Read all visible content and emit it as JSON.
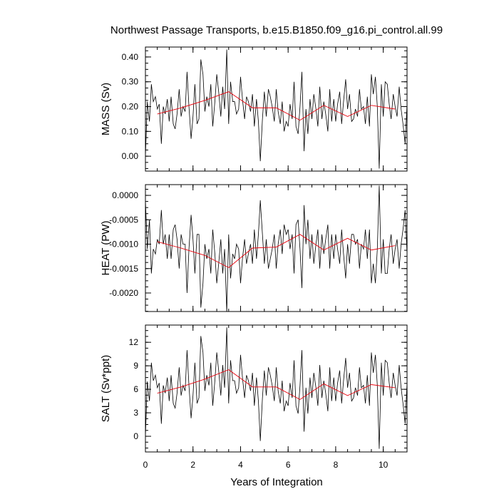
{
  "chart_data": [
    {
      "type": "line",
      "title": "Northwest Passage Transports, b.e15.B1850.f09_g16.pi_control.all.99",
      "ylabel": "MASS (Sv)",
      "xlabel": "",
      "xlim": [
        0,
        11
      ],
      "ylim": [
        -0.06,
        0.44
      ],
      "yticks": [
        0.0,
        0.1,
        0.2,
        0.3,
        0.4
      ],
      "ytick_labels": [
        "0.00",
        "0.10",
        "0.20",
        "0.30",
        "0.40"
      ],
      "yminor_step": 0.025,
      "xticks": [
        0,
        2,
        4,
        6,
        8,
        10
      ],
      "xtick_labels": [],
      "xminor_step": 0.5,
      "series": [
        {
          "color": "#000000",
          "x": [
            0.0,
            0.08,
            0.17,
            0.25,
            0.33,
            0.42,
            0.5,
            0.58,
            0.67,
            0.75,
            0.83,
            0.92,
            1.0,
            1.08,
            1.17,
            1.25,
            1.33,
            1.42,
            1.5,
            1.58,
            1.67,
            1.75,
            1.83,
            1.92,
            2.0,
            2.08,
            2.17,
            2.25,
            2.33,
            2.42,
            2.5,
            2.58,
            2.67,
            2.75,
            2.83,
            2.92,
            3.0,
            3.08,
            3.17,
            3.25,
            3.33,
            3.42,
            3.5,
            3.58,
            3.67,
            3.75,
            3.83,
            3.92,
            4.0,
            4.08,
            4.17,
            4.25,
            4.33,
            4.42,
            4.5,
            4.58,
            4.67,
            4.75,
            4.83,
            4.92,
            5.0,
            5.08,
            5.17,
            5.25,
            5.33,
            5.42,
            5.5,
            5.58,
            5.67,
            5.75,
            5.83,
            5.92,
            6.0,
            6.08,
            6.17,
            6.25,
            6.33,
            6.42,
            6.5,
            6.58,
            6.67,
            6.75,
            6.83,
            6.92,
            7.0,
            7.08,
            7.17,
            7.25,
            7.33,
            7.42,
            7.5,
            7.58,
            7.67,
            7.75,
            7.83,
            7.92,
            8.0,
            8.08,
            8.17,
            8.25,
            8.33,
            8.42,
            8.5,
            8.58,
            8.67,
            8.75,
            8.83,
            8.92,
            9.0,
            9.08,
            9.17,
            9.25,
            9.33,
            9.42,
            9.5,
            9.58,
            9.67,
            9.75,
            9.83,
            9.92,
            10.0,
            10.08,
            10.17,
            10.25,
            10.33,
            10.42,
            10.5,
            10.58,
            10.67,
            10.75,
            10.83,
            10.92,
            11.0
          ],
          "values": [
            0.0,
            0.22,
            0.14,
            0.29,
            0.22,
            0.24,
            0.19,
            0.21,
            0.05,
            0.2,
            0.17,
            0.23,
            0.14,
            0.24,
            0.13,
            0.11,
            0.17,
            0.27,
            0.16,
            0.2,
            0.18,
            0.34,
            0.2,
            0.07,
            0.16,
            0.29,
            0.13,
            0.15,
            0.39,
            0.33,
            0.18,
            0.24,
            0.2,
            0.29,
            0.12,
            0.22,
            0.33,
            0.26,
            0.16,
            0.28,
            0.19,
            0.43,
            0.13,
            0.3,
            0.22,
            0.22,
            0.17,
            0.19,
            0.32,
            0.23,
            0.15,
            0.24,
            0.22,
            0.18,
            0.25,
            0.12,
            0.23,
            0.14,
            -0.02,
            0.15,
            0.26,
            0.16,
            0.27,
            0.24,
            0.2,
            0.14,
            0.27,
            0.18,
            0.13,
            0.22,
            0.1,
            0.14,
            0.12,
            0.21,
            0.15,
            0.3,
            0.12,
            0.09,
            0.2,
            0.34,
            0.02,
            0.19,
            0.09,
            0.23,
            0.15,
            0.25,
            0.19,
            0.12,
            0.28,
            0.15,
            0.22,
            0.17,
            0.1,
            0.27,
            0.14,
            0.23,
            0.14,
            0.21,
            0.26,
            0.13,
            0.22,
            0.31,
            0.19,
            0.25,
            0.14,
            0.15,
            0.19,
            0.16,
            0.27,
            0.19,
            0.2,
            0.13,
            0.24,
            0.12,
            0.33,
            0.25,
            0.32,
            0.2,
            -0.05,
            0.29,
            0.16,
            0.3,
            0.29,
            0.21,
            0.15,
            0.25,
            0.2,
            0.16,
            0.28,
            0.19,
            0.13,
            0.05,
            0.21
          ]
        },
        {
          "color": "#e8000b",
          "x": [
            0.5,
            1.5,
            2.5,
            3.5,
            4.5,
            5.5,
            6.5,
            7.5,
            8.5,
            9.5,
            10.5
          ],
          "values": [
            0.17,
            0.195,
            0.225,
            0.26,
            0.195,
            0.195,
            0.145,
            0.205,
            0.16,
            0.205,
            0.19
          ]
        }
      ]
    },
    {
      "type": "line",
      "title": "",
      "ylabel": "HEAT (PW)",
      "xlabel": "",
      "xlim": [
        0,
        11
      ],
      "ylim": [
        -0.00238,
        0.00022
      ],
      "yticks": [
        -0.002,
        -0.0015,
        -0.001,
        -0.0005,
        0.0
      ],
      "ytick_labels": [
        "-0.0020",
        "-0.0015",
        "-0.0010",
        "-0.0005",
        "0.0000"
      ],
      "yminor_step": 0.000125,
      "xticks": [
        0,
        2,
        4,
        6,
        8,
        10
      ],
      "xtick_labels": [],
      "xminor_step": 0.5,
      "series": [
        {
          "color": "#000000",
          "x": [
            0.0,
            0.08,
            0.17,
            0.25,
            0.33,
            0.42,
            0.5,
            0.58,
            0.67,
            0.75,
            0.83,
            0.92,
            1.0,
            1.08,
            1.17,
            1.25,
            1.33,
            1.42,
            1.5,
            1.58,
            1.67,
            1.75,
            1.83,
            1.92,
            2.0,
            2.08,
            2.17,
            2.25,
            2.33,
            2.42,
            2.5,
            2.58,
            2.67,
            2.75,
            2.83,
            2.92,
            3.0,
            3.08,
            3.17,
            3.25,
            3.33,
            3.42,
            3.5,
            3.58,
            3.67,
            3.75,
            3.83,
            3.92,
            4.0,
            4.08,
            4.17,
            4.25,
            4.33,
            4.42,
            4.5,
            4.58,
            4.67,
            4.75,
            4.83,
            4.92,
            5.0,
            5.08,
            5.17,
            5.25,
            5.33,
            5.42,
            5.5,
            5.58,
            5.67,
            5.75,
            5.83,
            5.92,
            6.0,
            6.08,
            6.17,
            6.25,
            6.33,
            6.42,
            6.5,
            6.58,
            6.67,
            6.75,
            6.83,
            6.92,
            7.0,
            7.08,
            7.17,
            7.25,
            7.33,
            7.42,
            7.5,
            7.58,
            7.67,
            7.75,
            7.83,
            7.92,
            8.0,
            8.08,
            8.17,
            8.25,
            8.33,
            8.42,
            8.5,
            8.58,
            8.67,
            8.75,
            8.83,
            8.92,
            9.0,
            9.08,
            9.17,
            9.25,
            9.33,
            9.42,
            9.5,
            9.58,
            9.67,
            9.75,
            9.83,
            9.92,
            10.0,
            10.08,
            10.17,
            10.25,
            10.33,
            10.42,
            10.5,
            10.58,
            10.67,
            10.75,
            10.83,
            10.92,
            11.0
          ],
          "values": [
            -0.0001,
            -0.0011,
            -0.0005,
            -0.0016,
            -0.0011,
            -0.0012,
            -0.0009,
            -0.001,
            -0.0003,
            -0.001,
            -0.0008,
            -0.0013,
            -0.0008,
            -0.0013,
            -0.0007,
            -0.0006,
            -0.0009,
            -0.0015,
            -0.0008,
            -0.001,
            -0.001,
            -0.002,
            -0.0011,
            -0.0004,
            -0.0009,
            -0.0016,
            -0.0008,
            -0.0008,
            -0.0023,
            -0.0018,
            -0.001,
            -0.0013,
            -0.0011,
            -0.0016,
            -0.0007,
            -0.0012,
            -0.0018,
            -0.0014,
            -0.0009,
            -0.0016,
            -0.0011,
            -0.0024,
            -0.0008,
            -0.0017,
            -0.0012,
            -0.0013,
            -0.001,
            -0.0011,
            -0.0018,
            -0.0013,
            -0.0009,
            -0.0014,
            -0.0012,
            -0.001,
            -0.0014,
            -0.0007,
            -0.0013,
            -0.0008,
            -0.0001,
            -0.0008,
            -0.0014,
            -0.0009,
            -0.0015,
            -0.0013,
            -0.0011,
            -0.0008,
            -0.0015,
            -0.001,
            -0.0007,
            -0.0012,
            -0.0006,
            -0.0008,
            -0.0007,
            -0.0011,
            -0.0008,
            -0.0016,
            -0.0006,
            -0.0005,
            -0.0011,
            -0.0019,
            -0.0002,
            -0.001,
            -0.0005,
            -0.0013,
            -0.0008,
            -0.0014,
            -0.001,
            -0.0007,
            -0.0015,
            -0.0008,
            -0.0012,
            -0.0009,
            -0.0006,
            -0.0015,
            -0.0008,
            -0.0013,
            -0.0008,
            -0.0011,
            -0.0014,
            -0.0007,
            -0.0012,
            -0.0017,
            -0.001,
            -0.0014,
            -0.0008,
            -0.0008,
            -0.001,
            -0.0009,
            -0.0015,
            -0.001,
            -0.0011,
            -0.0007,
            -0.0013,
            -0.0007,
            -0.0018,
            -0.0014,
            -0.0018,
            -0.0011,
            0.0002,
            -0.0016,
            -0.0009,
            -0.0016,
            -0.0016,
            -0.0011,
            -0.0008,
            -0.0014,
            -0.0011,
            -0.0009,
            -0.0015,
            -0.001,
            -0.0007,
            -0.0003,
            -0.0012
          ]
        },
        {
          "color": "#e8000b",
          "x": [
            0.5,
            1.5,
            2.5,
            3.5,
            4.5,
            5.5,
            6.5,
            7.5,
            8.5,
            9.5,
            10.5
          ],
          "values": [
            -0.00095,
            -0.00108,
            -0.00123,
            -0.00148,
            -0.00108,
            -0.00106,
            -0.0008,
            -0.00112,
            -0.00088,
            -0.00112,
            -0.00103
          ]
        }
      ]
    },
    {
      "type": "line",
      "title": "",
      "ylabel": "SALT (Sv*ppt)",
      "xlabel": "Years of Integration",
      "xlim": [
        0,
        11
      ],
      "ylim": [
        -2.0,
        14.2
      ],
      "yticks": [
        0,
        3,
        6,
        9,
        12
      ],
      "ytick_labels": [
        "0",
        "3",
        "6",
        "9",
        "12"
      ],
      "yminor_step": 0.75,
      "xticks": [
        0,
        2,
        4,
        6,
        8,
        10
      ],
      "xtick_labels": [
        "0",
        "2",
        "4",
        "6",
        "8",
        "10"
      ],
      "xminor_step": 0.5,
      "series": [
        {
          "color": "#000000",
          "x": [
            0.0,
            0.08,
            0.17,
            0.25,
            0.33,
            0.42,
            0.5,
            0.58,
            0.67,
            0.75,
            0.83,
            0.92,
            1.0,
            1.08,
            1.17,
            1.25,
            1.33,
            1.42,
            1.5,
            1.58,
            1.67,
            1.75,
            1.83,
            1.92,
            2.0,
            2.08,
            2.17,
            2.25,
            2.33,
            2.42,
            2.5,
            2.58,
            2.67,
            2.75,
            2.83,
            2.92,
            3.0,
            3.08,
            3.17,
            3.25,
            3.33,
            3.42,
            3.5,
            3.58,
            3.67,
            3.75,
            3.83,
            3.92,
            4.0,
            4.08,
            4.17,
            4.25,
            4.33,
            4.42,
            4.5,
            4.58,
            4.67,
            4.75,
            4.83,
            4.92,
            5.0,
            5.08,
            5.17,
            5.25,
            5.33,
            5.42,
            5.5,
            5.58,
            5.67,
            5.75,
            5.83,
            5.92,
            6.0,
            6.08,
            6.17,
            6.25,
            6.33,
            6.42,
            6.5,
            6.58,
            6.67,
            6.75,
            6.83,
            6.92,
            7.0,
            7.08,
            7.17,
            7.25,
            7.33,
            7.42,
            7.5,
            7.58,
            7.67,
            7.75,
            7.83,
            7.92,
            8.0,
            8.08,
            8.17,
            8.25,
            8.33,
            8.42,
            8.5,
            8.58,
            8.67,
            8.75,
            8.83,
            8.92,
            9.0,
            9.08,
            9.17,
            9.25,
            9.33,
            9.42,
            9.5,
            9.58,
            9.67,
            9.75,
            9.83,
            9.92,
            10.0,
            10.08,
            10.17,
            10.25,
            10.33,
            10.42,
            10.5,
            10.58,
            10.67,
            10.75,
            10.83,
            10.92,
            11.0
          ],
          "values": [
            0.0,
            7.0,
            4.5,
            9.4,
            7.1,
            7.8,
            6.2,
            6.8,
            1.6,
            6.5,
            5.5,
            7.5,
            4.5,
            7.8,
            4.2,
            3.6,
            5.5,
            8.8,
            5.2,
            6.5,
            5.8,
            11.0,
            6.5,
            2.3,
            5.2,
            9.4,
            4.2,
            4.9,
            12.8,
            10.7,
            5.8,
            7.8,
            6.5,
            9.4,
            3.9,
            7.1,
            10.7,
            8.4,
            5.2,
            9.1,
            6.2,
            13.9,
            4.2,
            9.7,
            7.1,
            7.1,
            5.5,
            6.2,
            10.4,
            7.5,
            4.9,
            7.8,
            7.1,
            5.8,
            8.1,
            3.9,
            7.5,
            4.5,
            -0.6,
            4.9,
            8.4,
            5.2,
            8.8,
            7.8,
            6.5,
            4.5,
            8.8,
            5.8,
            4.2,
            7.1,
            3.2,
            4.5,
            3.9,
            6.8,
            4.9,
            9.7,
            3.9,
            2.9,
            6.5,
            11.0,
            0.6,
            6.2,
            2.9,
            7.5,
            4.9,
            8.1,
            6.2,
            3.9,
            9.1,
            4.9,
            7.1,
            5.5,
            3.2,
            8.8,
            4.5,
            7.5,
            4.5,
            6.8,
            8.4,
            4.2,
            7.1,
            10.0,
            6.2,
            8.1,
            4.5,
            4.9,
            6.2,
            5.2,
            8.8,
            6.2,
            6.5,
            4.2,
            7.8,
            3.9,
            10.7,
            8.1,
            10.4,
            6.5,
            -1.6,
            9.4,
            5.2,
            9.7,
            9.4,
            6.8,
            4.9,
            8.1,
            6.5,
            5.2,
            9.1,
            6.2,
            4.2,
            1.6,
            6.8
          ]
        },
        {
          "color": "#e8000b",
          "x": [
            0.5,
            1.5,
            2.5,
            3.5,
            4.5,
            5.5,
            6.5,
            7.5,
            8.5,
            9.5,
            10.5
          ],
          "values": [
            5.5,
            6.3,
            7.3,
            8.5,
            6.3,
            6.3,
            4.7,
            6.7,
            5.2,
            6.6,
            6.2
          ]
        }
      ]
    }
  ]
}
